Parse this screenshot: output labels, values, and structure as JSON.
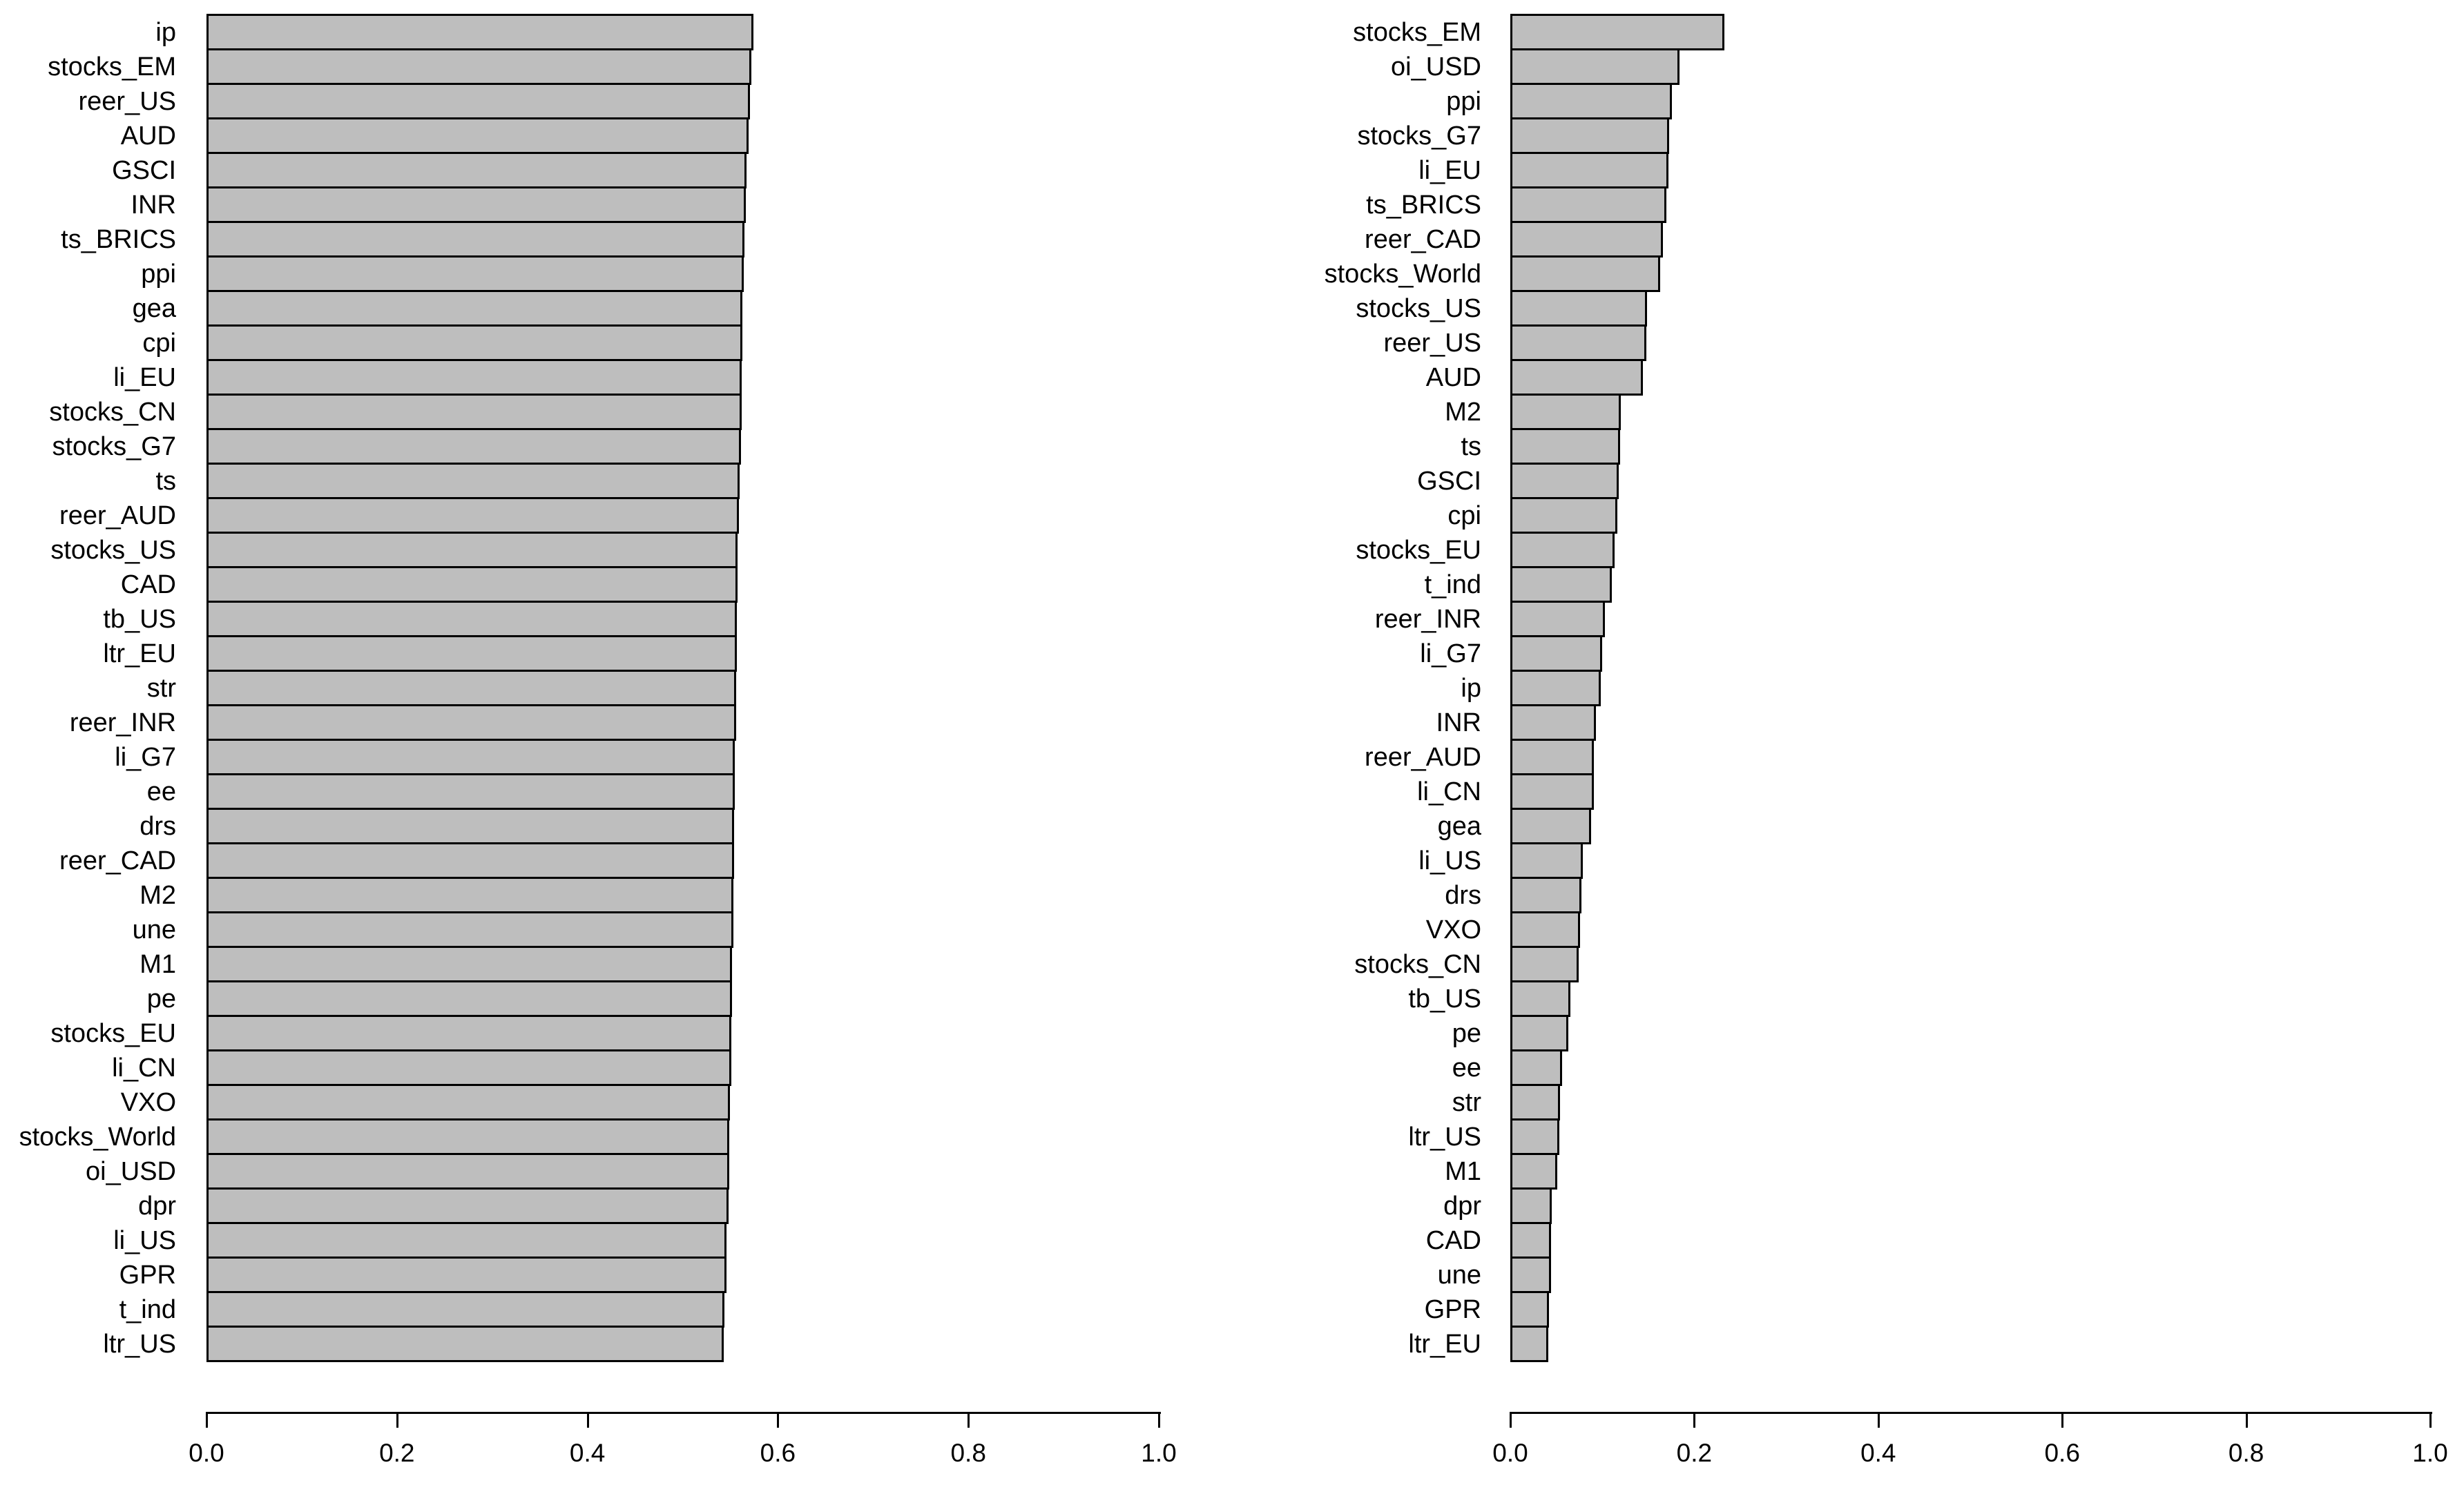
{
  "figure": {
    "background": "#ffffff",
    "panel_count": 2
  },
  "chart_data": [
    {
      "type": "bar",
      "orientation": "horizontal",
      "title": "",
      "xlabel": "",
      "ylabel": "",
      "xlim": [
        0,
        1
      ],
      "x_ticks": [
        0,
        0.2,
        0.4,
        0.6,
        0.8,
        1
      ],
      "x_tick_labels": [
        "0.0",
        "0.2",
        "0.4",
        "0.6",
        "0.8",
        "1.0"
      ],
      "grid": false,
      "bar_fill": "#bebebe",
      "bar_stroke": "#000000",
      "axis_color": "#000000",
      "categories": [
        "ip",
        "stocks_EM",
        "reer_US",
        "AUD",
        "GSCI",
        "INR",
        "ts_BRICS",
        "ppi",
        "gea",
        "cpi",
        "li_EU",
        "stocks_CN",
        "stocks_G7",
        "ts",
        "reer_AUD",
        "stocks_US",
        "CAD",
        "tb_US",
        "ltr_EU",
        "str",
        "reer_INR",
        "li_G7",
        "ee",
        "drs",
        "reer_CAD",
        "M2",
        "une",
        "M1",
        "pe",
        "stocks_EU",
        "li_CN",
        "VXO",
        "stocks_World",
        "oi_USD",
        "dpr",
        "li_US",
        "GPR",
        "t_ind",
        "ltr_US"
      ],
      "values": [
        0.574,
        0.572,
        0.571,
        0.569,
        0.567,
        0.566,
        0.565,
        0.564,
        0.563,
        0.563,
        0.562,
        0.562,
        0.561,
        0.56,
        0.559,
        0.558,
        0.558,
        0.557,
        0.557,
        0.556,
        0.556,
        0.555,
        0.555,
        0.554,
        0.554,
        0.553,
        0.553,
        0.552,
        0.552,
        0.551,
        0.551,
        0.55,
        0.549,
        0.549,
        0.548,
        0.546,
        0.546,
        0.544,
        0.543
      ]
    },
    {
      "type": "bar",
      "orientation": "horizontal",
      "title": "",
      "xlabel": "",
      "ylabel": "",
      "xlim": [
        0,
        1
      ],
      "x_ticks": [
        0,
        0.2,
        0.4,
        0.6,
        0.8,
        1
      ],
      "x_tick_labels": [
        "0.0",
        "0.2",
        "0.4",
        "0.6",
        "0.8",
        "1.0"
      ],
      "grid": false,
      "bar_fill": "#bebebe",
      "bar_stroke": "#000000",
      "axis_color": "#000000",
      "categories": [
        "stocks_EM",
        "oi_USD",
        "ppi",
        "stocks_G7",
        "li_EU",
        "ts_BRICS",
        "reer_CAD",
        "stocks_World",
        "stocks_US",
        "reer_US",
        "AUD",
        "M2",
        "ts",
        "GSCI",
        "cpi",
        "stocks_EU",
        "t_ind",
        "reer_INR",
        "li_G7",
        "ip",
        "INR",
        "reer_AUD",
        "li_CN",
        "gea",
        "li_US",
        "drs",
        "VXO",
        "stocks_CN",
        "tb_US",
        "pe",
        "ee",
        "str",
        "ltr_US",
        "M1",
        "dpr",
        "CAD",
        "une",
        "GPR",
        "ltr_EU"
      ],
      "values": [
        0.233,
        0.184,
        0.176,
        0.173,
        0.172,
        0.17,
        0.166,
        0.163,
        0.149,
        0.148,
        0.144,
        0.12,
        0.119,
        0.118,
        0.116,
        0.113,
        0.11,
        0.103,
        0.1,
        0.098,
        0.093,
        0.091,
        0.091,
        0.088,
        0.079,
        0.077,
        0.076,
        0.074,
        0.065,
        0.063,
        0.056,
        0.054,
        0.053,
        0.051,
        0.045,
        0.044,
        0.044,
        0.042,
        0.041
      ]
    }
  ]
}
